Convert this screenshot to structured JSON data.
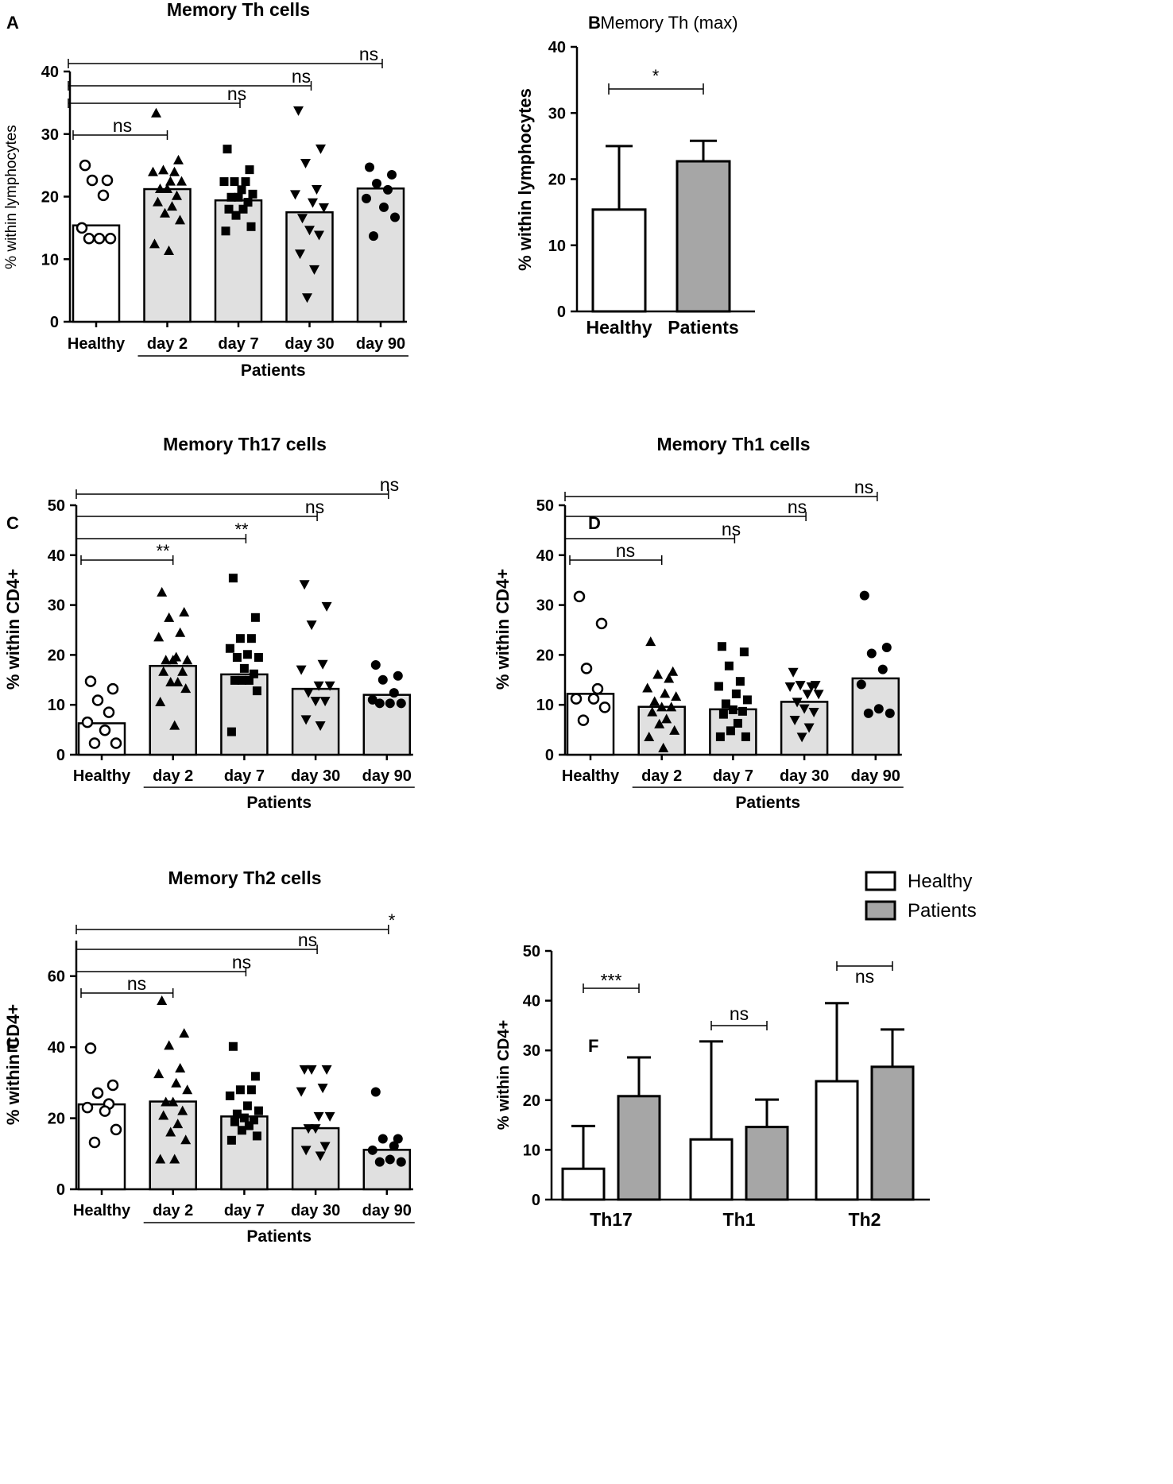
{
  "figure": {
    "panel_letters": [
      "A",
      "B",
      "C",
      "D",
      "E",
      "F"
    ],
    "group_label": "Patients"
  },
  "chart_data": [
    {
      "panel": "A",
      "type": "bar",
      "title": "Memory Th cells",
      "title_bold": true,
      "ylabel": "% within lymphocytes",
      "ylabel_bold": false,
      "ylim": [
        0,
        40
      ],
      "yticks": [
        "0",
        "10",
        "20",
        "30",
        "40"
      ],
      "categories": [
        "Healthy",
        "day 2",
        "day 7",
        "day 30",
        "day 90"
      ],
      "values": [
        15.4,
        21.2,
        19.4,
        17.5,
        21.3
      ],
      "markers": [
        "circle-open",
        "triangle-up",
        "square",
        "triangle-down",
        "circle"
      ],
      "points": [
        [
          25.0,
          22.6,
          22.6,
          20.2,
          15.0,
          13.3,
          13.3,
          13.3
        ],
        [
          33.3,
          25.8,
          24.2,
          23.9,
          23.9,
          22.4,
          22.4,
          21.2,
          21.2,
          20.1,
          19.1,
          18.4,
          17.3,
          16.2,
          12.4,
          11.3
        ],
        [
          27.6,
          24.3,
          22.4,
          22.4,
          22.4,
          21.1,
          20.4,
          19.9,
          19.9,
          19.1,
          18.0,
          18.0,
          17.0,
          15.2,
          14.5
        ],
        [
          33.8,
          27.7,
          25.4,
          21.2,
          20.4,
          19.1,
          18.3,
          16.6,
          14.7,
          13.9,
          10.9,
          8.4,
          3.9
        ],
        [
          24.7,
          23.5,
          22.1,
          21.1,
          19.7,
          18.3,
          16.7,
          13.7
        ]
      ],
      "bar_fill": [
        "#ffffff",
        "#e0e0e0",
        "#e0e0e0",
        "#e0e0e0",
        "#e0e0e0"
      ],
      "error_bars": false,
      "comparisons": [
        {
          "from": "Healthy",
          "to": "day 2",
          "label": "ns"
        },
        {
          "from": "Healthy",
          "to": "day 7",
          "label": "ns"
        },
        {
          "from": "Healthy",
          "to": "day 30",
          "label": "ns"
        },
        {
          "from": "Healthy",
          "to": "day 90",
          "label": "ns"
        }
      ],
      "group_line": {
        "from": "day 2",
        "to": "day 90",
        "label": "Patients"
      }
    },
    {
      "panel": "B",
      "type": "bar",
      "title": "Memory Th (max)",
      "title_bold": false,
      "ylabel": "% within lymphocytes",
      "ylabel_bold": true,
      "ylim": [
        0,
        40
      ],
      "yticks": [
        "0",
        "10",
        "20",
        "30",
        "40"
      ],
      "categories": [
        "Healthy",
        "Patients"
      ],
      "values": [
        15.4,
        22.7
      ],
      "error_upper": [
        25.0,
        25.8
      ],
      "bar_fill": [
        "#ffffff",
        "#a6a6a6"
      ],
      "error_bars": true,
      "comparisons": [
        {
          "from": "Healthy",
          "to": "Patients",
          "label": "*"
        }
      ]
    },
    {
      "panel": "C",
      "type": "bar",
      "title": "Memory Th17 cells",
      "title_bold": true,
      "ylabel": "% within CD4+",
      "ylabel_bold": true,
      "ylim": [
        0,
        50
      ],
      "yticks": [
        "0",
        "10",
        "20",
        "30",
        "40",
        "50"
      ],
      "categories": [
        "Healthy",
        "day 2",
        "day 7",
        "day 30",
        "day 90"
      ],
      "values": [
        6.3,
        17.8,
        16.1,
        13.2,
        12.0
      ],
      "markers": [
        "circle-open",
        "triangle-up",
        "square",
        "triangle-down",
        "circle"
      ],
      "points": [
        [
          14.7,
          13.2,
          10.9,
          8.5,
          6.5,
          4.9,
          2.3,
          2.3
        ],
        [
          32.5,
          28.5,
          27.4,
          24.4,
          23.5,
          19.5,
          18.9,
          18.9,
          18.9,
          16.6,
          16.6,
          14.5,
          14.5,
          13.2,
          10.5,
          5.8
        ],
        [
          35.4,
          27.5,
          23.3,
          23.3,
          21.3,
          20.1,
          19.5,
          19.5,
          17.3,
          16.2,
          14.9,
          14.9,
          14.9,
          12.8,
          4.6
        ],
        [
          34.2,
          29.8,
          26.1,
          18.2,
          17.1,
          13.9,
          13.9,
          12.5,
          10.8,
          10.8,
          7.1,
          5.9
        ],
        [
          18.0,
          15.8,
          15.0,
          12.4,
          11.0,
          10.3,
          10.3,
          10.3
        ]
      ],
      "bar_fill": [
        "#ffffff",
        "#e0e0e0",
        "#e0e0e0",
        "#e0e0e0",
        "#e0e0e0"
      ],
      "error_bars": false,
      "comparisons": [
        {
          "from": "Healthy",
          "to": "day 2",
          "label": "**"
        },
        {
          "from": "Healthy",
          "to": "day 7",
          "label": "**"
        },
        {
          "from": "Healthy",
          "to": "day 30",
          "label": "ns"
        },
        {
          "from": "Healthy",
          "to": "day 90",
          "label": "ns"
        }
      ],
      "group_line": {
        "from": "day 2",
        "to": "day 90",
        "label": "Patients"
      }
    },
    {
      "panel": "D",
      "type": "bar",
      "title": "Memory Th1 cells",
      "title_bold": true,
      "ylabel": "% within CD4+",
      "ylabel_bold": true,
      "ylim": [
        0,
        50
      ],
      "yticks": [
        "0",
        "10",
        "20",
        "30",
        "40",
        "50"
      ],
      "categories": [
        "Healthy",
        "day 2",
        "day 7",
        "day 30",
        "day 90"
      ],
      "values": [
        12.2,
        9.6,
        9.1,
        10.6,
        15.3
      ],
      "markers": [
        "circle-open",
        "triangle-up",
        "square",
        "triangle-down",
        "circle"
      ],
      "points": [
        [
          31.7,
          26.3,
          17.3,
          13.2,
          11.2,
          11.2,
          9.5,
          6.9
        ],
        [
          22.6,
          16.6,
          16.0,
          15.2,
          13.3,
          12.2,
          11.6,
          10.6,
          9.5,
          9.5,
          8.5,
          7.1,
          6.1,
          4.8,
          3.5,
          1.3
        ],
        [
          21.7,
          20.6,
          17.8,
          14.7,
          13.7,
          12.2,
          11.0,
          10.2,
          9.0,
          8.7,
          8.1,
          6.3,
          4.8,
          3.6,
          3.6
        ],
        [
          16.6,
          14.0,
          14.0,
          13.7,
          13.7,
          12.2,
          12.2,
          10.6,
          9.3,
          8.6,
          7.0,
          5.5,
          3.6
        ],
        [
          31.9,
          21.5,
          20.3,
          17.1,
          14.1,
          9.2,
          8.3,
          8.3
        ]
      ],
      "bar_fill": [
        "#ffffff",
        "#e0e0e0",
        "#e0e0e0",
        "#e0e0e0",
        "#e0e0e0"
      ],
      "error_bars": false,
      "comparisons": [
        {
          "from": "Healthy",
          "to": "day 2",
          "label": "ns"
        },
        {
          "from": "Healthy",
          "to": "day 7",
          "label": "ns"
        },
        {
          "from": "Healthy",
          "to": "day 30",
          "label": "ns"
        },
        {
          "from": "Healthy",
          "to": "day 90",
          "label": "ns"
        }
      ],
      "group_line": {
        "from": "day 2",
        "to": "day 90",
        "label": "Patients"
      }
    },
    {
      "panel": "E",
      "type": "bar",
      "title": "Memory Th2 cells",
      "title_bold": true,
      "ylabel": "% within CD4+",
      "ylabel_bold": true,
      "ylim": [
        0,
        70
      ],
      "yticks": [
        "0",
        "20",
        "40",
        "60"
      ],
      "ytick_values": [
        0,
        20,
        40,
        60
      ],
      "categories": [
        "Healthy",
        "day 2",
        "day 7",
        "day 30",
        "day 90"
      ],
      "values": [
        23.9,
        24.7,
        20.5,
        17.2,
        11.1
      ],
      "markers": [
        "circle-open",
        "triangle-up",
        "square",
        "triangle-down",
        "circle"
      ],
      "points": [
        [
          39.7,
          29.3,
          27.1,
          24.0,
          23.0,
          22.0,
          16.8,
          13.2
        ],
        [
          53.0,
          43.8,
          40.4,
          34.0,
          32.4,
          29.8,
          27.9,
          24.5,
          24.5,
          22.0,
          20.7,
          18.3,
          16.0,
          13.8,
          8.4,
          8.4
        ],
        [
          40.2,
          31.8,
          28.0,
          28.0,
          26.3,
          23.5,
          22.1,
          21.2,
          20.1,
          19.5,
          19.0,
          17.9,
          16.6,
          15.0,
          13.8
        ],
        [
          33.8,
          33.8,
          33.8,
          28.6,
          27.6,
          20.6,
          20.6,
          17.2,
          17.2,
          12.2,
          11.1,
          9.5
        ],
        [
          27.4,
          14.2,
          14.2,
          12.2,
          11.0,
          8.4,
          7.7,
          7.7
        ]
      ],
      "bar_fill": [
        "#ffffff",
        "#e0e0e0",
        "#e0e0e0",
        "#e0e0e0",
        "#e0e0e0"
      ],
      "error_bars": false,
      "comparisons": [
        {
          "from": "Healthy",
          "to": "day 2",
          "label": "ns"
        },
        {
          "from": "Healthy",
          "to": "day 7",
          "label": "ns"
        },
        {
          "from": "Healthy",
          "to": "day 30",
          "label": "ns"
        },
        {
          "from": "Healthy",
          "to": "day 90",
          "label": "*"
        }
      ],
      "group_line": {
        "from": "day 2",
        "to": "day 90",
        "label": "Patients"
      }
    },
    {
      "panel": "F",
      "type": "bar",
      "title": "",
      "ylabel": "% within CD4+",
      "ylabel_bold": true,
      "ylim": [
        0,
        50
      ],
      "yticks": [
        "0",
        "10",
        "20",
        "30",
        "40",
        "50"
      ],
      "categories": [
        "Th17",
        "Th1",
        "Th2"
      ],
      "series": [
        {
          "name": "Healthy",
          "values": [
            6.2,
            12.1,
            23.8
          ],
          "error_upper": [
            14.8,
            31.8,
            39.5
          ],
          "fill": "#ffffff"
        },
        {
          "name": "Patients",
          "values": [
            20.8,
            14.6,
            26.7
          ],
          "error_upper": [
            28.6,
            20.1,
            34.2
          ],
          "fill": "#a6a6a6"
        }
      ],
      "legend": [
        "Healthy",
        "Patients"
      ],
      "legend_position": "top-right",
      "comparisons": [
        {
          "category": "Th17",
          "label": "***"
        },
        {
          "category": "Th1",
          "label": "ns"
        },
        {
          "category": "Th2",
          "label": "ns"
        }
      ]
    }
  ]
}
